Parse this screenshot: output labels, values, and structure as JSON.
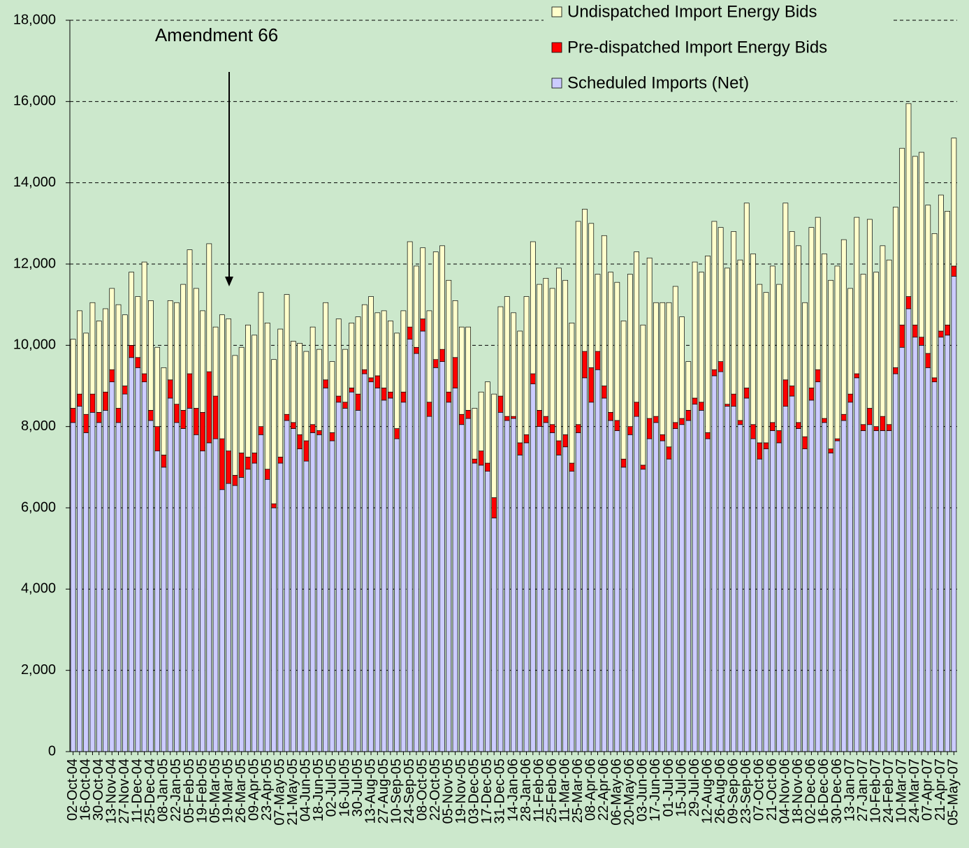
{
  "chart_data": {
    "type": "stacked-bar",
    "annotation": "Amendment 66",
    "categories": [
      "02-Oct-04",
      null,
      "16-Oct-04",
      null,
      "30-Oct-04",
      null,
      "13-Nov-04",
      null,
      "27-Nov-04",
      null,
      "11-Dec-04",
      null,
      "25-Dec-04",
      null,
      "08-Jan-05",
      null,
      "22-Jan-05",
      null,
      "05-Feb-05",
      null,
      "19-Feb-05",
      null,
      "05-Mar-05",
      null,
      "19-Mar-05",
      null,
      "26-Mar-05",
      null,
      "09-Apr-05",
      null,
      "23-Apr-05",
      null,
      "07-May-05",
      null,
      "21-May-05",
      null,
      "04-Jun-05",
      null,
      "18-Jun-05",
      null,
      "02-Jul-05",
      null,
      "16-Jul-05",
      null,
      "30-Jul-05",
      null,
      "13-Aug-05",
      null,
      "27-Aug-05",
      null,
      "10-Sep-05",
      null,
      "24-Sep-05",
      null,
      "08-Oct-05",
      null,
      "22-Oct-05",
      null,
      "05-Nov-05",
      null,
      "19-Nov-05",
      null,
      "03-Dec-05",
      null,
      "17-Dec-05",
      null,
      "31-Dec-05",
      null,
      "14-Jan-06",
      null,
      "28-Jan-06",
      null,
      "11-Feb-06",
      null,
      "25-Feb-06",
      null,
      "11-Mar-06",
      null,
      "25-Mar-06",
      null,
      "08-Apr-06",
      null,
      "22-Apr-06",
      null,
      "06-May-06",
      null,
      "20-May-06",
      null,
      "03-Jun-06",
      null,
      "17-Jun-06",
      null,
      "01-Jul-06",
      null,
      "15-Jul-06",
      null,
      "29-Jul-06",
      null,
      "12-Aug-06",
      null,
      "26-Aug-06",
      null,
      "09-Sep-06",
      null,
      "23-Sep-06",
      null,
      "07-Oct-06",
      null,
      "21-Oct-06",
      null,
      "04-Nov-06",
      null,
      "18-Nov-06",
      null,
      "02-Dec-06",
      null,
      "16-Dec-06",
      null,
      "30-Dec-06",
      null,
      "13-Jan-07",
      null,
      "27-Jan-07",
      null,
      "10-Feb-07",
      null,
      "24-Feb-07",
      null,
      "10-Mar-07",
      null,
      "24-Mar-07",
      null,
      "07-Apr-07",
      null,
      "21-Apr-07",
      null,
      "05-May-07"
    ],
    "series": [
      {
        "name": "Scheduled Imports (Net)",
        "color": "#ccccff",
        "values": [
          8100,
          8500,
          7850,
          8350,
          8100,
          8400,
          9100,
          8100,
          8800,
          9700,
          9450,
          9100,
          8150,
          7400,
          7000,
          8700,
          8100,
          7950,
          8450,
          7800,
          7400,
          7600,
          7700,
          6450,
          6600,
          6550,
          6750,
          6950,
          7100,
          7800,
          6700,
          6000,
          7100,
          8150,
          7950,
          7450,
          7150,
          7850,
          7800,
          8950,
          7650,
          8600,
          8450,
          8850,
          8400,
          9300,
          9100,
          8950,
          8650,
          8700,
          7700,
          8600,
          10150,
          9800,
          10350,
          8250,
          9450,
          9600,
          8600,
          8950,
          8050,
          8200,
          7100,
          7050,
          6900,
          5750,
          8350,
          8150,
          8200,
          7300,
          7600,
          9050,
          8000,
          8100,
          7850,
          7300,
          7500,
          6900,
          7850,
          9200,
          8600,
          9400,
          8700,
          8150,
          7900,
          7000,
          7800,
          8250,
          6950,
          7700,
          8100,
          7650,
          7200,
          7950,
          8050,
          8150,
          8550,
          8400,
          7700,
          9250,
          9350,
          8500,
          8500,
          8050,
          8700,
          7700,
          7200,
          7450,
          7900,
          7600,
          8500,
          8750,
          7950,
          7450,
          8650,
          9100,
          8100,
          7350,
          7650,
          8150,
          8600,
          9200,
          7900,
          8050,
          7900,
          7900,
          7900,
          9300,
          9950,
          10900,
          10200,
          10000,
          9450,
          9100,
          10200,
          10250,
          11700
        ]
      },
      {
        "name": "Pre-dispatched Import Energy Bids",
        "color": "#ff0000",
        "values": [
          350,
          300,
          450,
          450,
          250,
          450,
          300,
          350,
          200,
          300,
          250,
          200,
          250,
          600,
          300,
          450,
          450,
          450,
          850,
          650,
          950,
          1750,
          1050,
          1250,
          800,
          250,
          600,
          300,
          250,
          200,
          250,
          100,
          150,
          150,
          150,
          350,
          500,
          200,
          100,
          200,
          200,
          150,
          150,
          100,
          400,
          100,
          100,
          300,
          300,
          150,
          250,
          250,
          300,
          150,
          300,
          350,
          200,
          300,
          250,
          750,
          250,
          200,
          100,
          350,
          200,
          500,
          400,
          100,
          50,
          300,
          200,
          250,
          400,
          150,
          200,
          350,
          300,
          200,
          200,
          650,
          850,
          450,
          300,
          200,
          250,
          200,
          200,
          350,
          100,
          500,
          150,
          150,
          300,
          150,
          150,
          250,
          150,
          200,
          150,
          150,
          250,
          50,
          300,
          100,
          250,
          350,
          400,
          150,
          200,
          300,
          650,
          250,
          150,
          300,
          300,
          300,
          100,
          100,
          50,
          150,
          200,
          100,
          150,
          400,
          100,
          350,
          150,
          150,
          550,
          300,
          300,
          200,
          350,
          100,
          150,
          250,
          250
        ]
      },
      {
        "name": "Undispatched Import Energy Bids",
        "color": "#ffffcc",
        "values": [
          1700,
          2050,
          2000,
          2250,
          2250,
          2050,
          2000,
          2550,
          1750,
          1800,
          1500,
          2750,
          2700,
          1950,
          2150,
          1950,
          2500,
          3100,
          3050,
          2950,
          2500,
          3150,
          1700,
          3050,
          3250,
          2950,
          2600,
          3250,
          2900,
          3300,
          3600,
          3550,
          3150,
          2950,
          2000,
          2250,
          2200,
          2400,
          2000,
          1900,
          1750,
          1900,
          1300,
          1600,
          1900,
          1600,
          2000,
          1550,
          1900,
          1750,
          2350,
          2000,
          2100,
          2000,
          1750,
          2250,
          2650,
          2550,
          2750,
          1400,
          2150,
          2050,
          1250,
          1450,
          2000,
          2550,
          2200,
          2950,
          2550,
          2750,
          3400,
          3250,
          3100,
          3400,
          3350,
          4250,
          3800,
          3450,
          5000,
          3500,
          3550,
          1900,
          3700,
          3450,
          3400,
          3400,
          3750,
          3700,
          3450,
          3950,
          2800,
          3250,
          3550,
          3350,
          2500,
          1200,
          3350,
          3200,
          4350,
          3650,
          3300,
          3350,
          4000,
          3950,
          4550,
          4200,
          3900,
          3700,
          3850,
          3600,
          4350,
          3800,
          4350,
          3300,
          3950,
          3750,
          4050,
          4150,
          4250,
          4300,
          2600,
          3850,
          3700,
          4650,
          3800,
          4200,
          4050,
          3950,
          4350,
          4750,
          4150,
          4550,
          3650,
          3550,
          3350,
          2800,
          3150
        ]
      }
    ],
    "ylim": [
      0,
      18000
    ],
    "yticks": [
      0,
      {
        "value": 2000,
        "label": "2,000"
      },
      {
        "value": 4000,
        "label": "4,000"
      },
      {
        "value": 6000,
        "label": "6,000"
      },
      {
        "value": 8000,
        "label": "8,000"
      },
      {
        "value": 10000,
        "label": "10,000"
      },
      {
        "value": 12000,
        "label": "12,000"
      },
      {
        "value": 14000,
        "label": "14,000"
      },
      {
        "value": 16000,
        "label": "16,000"
      },
      {
        "value": 18000,
        "label": "18,000"
      }
    ],
    "grid": true,
    "legend": "top-right"
  }
}
